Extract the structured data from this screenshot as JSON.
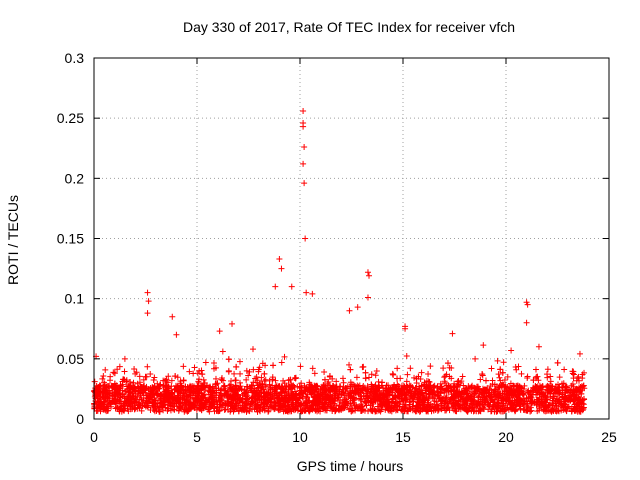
{
  "chart_data": {
    "type": "scatter",
    "title": "Day 330 of 2017, Rate Of TEC Index for receiver vfch",
    "xlabel": "GPS time / hours",
    "ylabel": "ROTI / TECUs",
    "xlim": [
      0,
      25
    ],
    "ylim": [
      0,
      0.3
    ],
    "xticks": [
      0,
      5,
      10,
      15,
      20,
      25
    ],
    "xtick_labels": [
      "0",
      "5",
      "10",
      "15",
      "20",
      "25"
    ],
    "yticks": [
      0,
      0.05,
      0.1,
      0.15,
      0.2,
      0.25,
      0.3
    ],
    "ytick_labels": [
      "0",
      "0.05",
      "0.1",
      "0.15",
      "0.2",
      "0.25",
      "0.3"
    ],
    "grid": true,
    "marker": "plus",
    "marker_color": "#ff0000",
    "series": [
      {
        "name": "ROTI",
        "notes": "dense background of points between 0.005 and 0.04 TECU/s across 0–23.8 h; notable peaks listed",
        "peaks": [
          {
            "x": 0.1,
            "y": 0.052
          },
          {
            "x": 1.5,
            "y": 0.05
          },
          {
            "x": 2.6,
            "y": 0.105
          },
          {
            "x": 2.65,
            "y": 0.098
          },
          {
            "x": 2.6,
            "y": 0.088
          },
          {
            "x": 3.8,
            "y": 0.085
          },
          {
            "x": 4.0,
            "y": 0.07
          },
          {
            "x": 6.1,
            "y": 0.073
          },
          {
            "x": 6.7,
            "y": 0.079
          },
          {
            "x": 8.8,
            "y": 0.11
          },
          {
            "x": 9.0,
            "y": 0.133
          },
          {
            "x": 9.1,
            "y": 0.125
          },
          {
            "x": 9.6,
            "y": 0.11
          },
          {
            "x": 10.15,
            "y": 0.256
          },
          {
            "x": 10.15,
            "y": 0.246
          },
          {
            "x": 10.15,
            "y": 0.243
          },
          {
            "x": 10.2,
            "y": 0.226
          },
          {
            "x": 10.15,
            "y": 0.212
          },
          {
            "x": 10.2,
            "y": 0.196
          },
          {
            "x": 10.25,
            "y": 0.15
          },
          {
            "x": 10.3,
            "y": 0.105
          },
          {
            "x": 10.6,
            "y": 0.104
          },
          {
            "x": 12.4,
            "y": 0.09
          },
          {
            "x": 12.8,
            "y": 0.093
          },
          {
            "x": 13.3,
            "y": 0.122
          },
          {
            "x": 13.35,
            "y": 0.119
          },
          {
            "x": 13.3,
            "y": 0.101
          },
          {
            "x": 15.1,
            "y": 0.075
          },
          {
            "x": 15.1,
            "y": 0.077
          },
          {
            "x": 17.4,
            "y": 0.071
          },
          {
            "x": 18.5,
            "y": 0.05
          },
          {
            "x": 21.0,
            "y": 0.097
          },
          {
            "x": 21.05,
            "y": 0.095
          },
          {
            "x": 21.0,
            "y": 0.08
          },
          {
            "x": 21.6,
            "y": 0.06
          },
          {
            "x": 23.7,
            "y": 0.034
          }
        ]
      }
    ]
  }
}
